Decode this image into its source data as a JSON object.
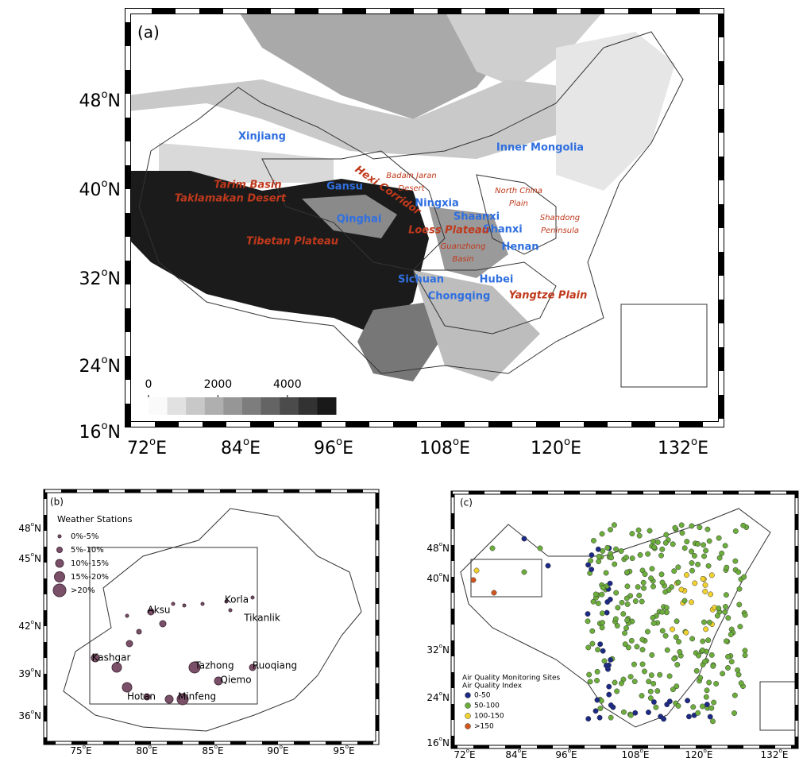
{
  "panel_a": {
    "label": "(a)",
    "degree": "o",
    "lat_ticks": [
      "48",
      "40",
      "32",
      "24",
      "16"
    ],
    "lat_unit": "N",
    "lon_ticks": [
      "72",
      "84",
      "96",
      "108",
      "120",
      "132"
    ],
    "lon_unit": "E",
    "provinces": [
      "Xinjiang",
      "Inner Mongolia",
      "Gansu",
      "Ningxia",
      "Qinghai",
      "Shaanxi",
      "Shanxi",
      "Henan",
      "Sichuan",
      "Hubei",
      "Chongqing"
    ],
    "regions": [
      [
        "Tarim Basin"
      ],
      [
        "Taklamakan Desert"
      ],
      [
        "Tibetan Plateau"
      ],
      [
        "Hexi Corridor"
      ],
      [
        "Badain Jaran",
        "Desert"
      ],
      [
        "Loess Plateau"
      ],
      [
        "North China",
        "Plain"
      ],
      [
        "Shandong",
        "Peninsula"
      ],
      [
        "Guanzhong",
        "Basin"
      ],
      [
        "Yangtze Plain"
      ]
    ],
    "colorbar": {
      "ticks": [
        0,
        2000,
        4000
      ],
      "lim": [
        0,
        5400
      ]
    }
  },
  "panel_b": {
    "label": "(b)",
    "degree": "o",
    "lat_ticks": [
      "48",
      "45",
      "42",
      "39",
      "36"
    ],
    "lat_unit": "N",
    "lon_ticks": [
      "75",
      "80",
      "85",
      "90",
      "95"
    ],
    "lon_unit": "E",
    "legend_title": "Weather Stations",
    "legend_items": [
      "0%-5%",
      "5%-10%",
      "10%-15%",
      "15%-20%",
      ">20%"
    ],
    "stations": [
      "Kashgar",
      "Aksu",
      "Korla",
      "Tikanlik",
      "Tazhong",
      "Ruoqiang",
      "Qiemo",
      "Hotan",
      "Minfeng"
    ]
  },
  "panel_c": {
    "label": "(c)",
    "degree": "o",
    "lat_ticks": [
      "48",
      "40",
      "32",
      "24",
      "16"
    ],
    "lat_unit": "N",
    "lon_ticks": [
      "72",
      "84",
      "96",
      "108",
      "120",
      "132"
    ],
    "lon_unit": "E",
    "legend_title": [
      "Air Quality Monitoring Sites",
      "Air Quality Index"
    ],
    "legend_items": [
      {
        "label": "0-50",
        "color": "#1c2a86"
      },
      {
        "label": "50-100",
        "color": "#6cad3c"
      },
      {
        "label": "100-150",
        "color": "#f2d22e"
      },
      {
        "label": ">150",
        "color": "#d2561c"
      }
    ]
  }
}
